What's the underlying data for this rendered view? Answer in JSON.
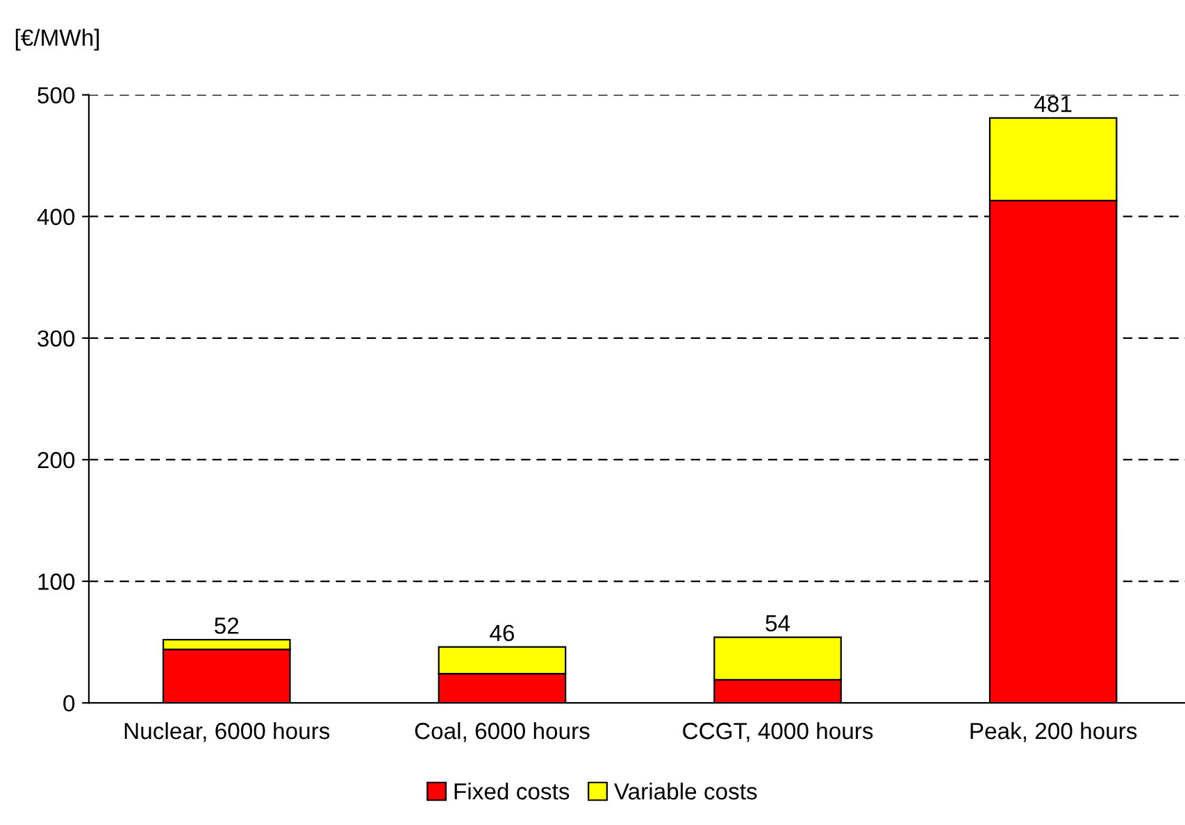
{
  "chart_data": {
    "type": "bar",
    "stacked": true,
    "ylabel": "[€/MWh]",
    "categories": [
      "Nuclear, 6000 hours",
      "Coal, 6000 hours",
      "CCGT, 4000 hours",
      "Peak, 200 hours"
    ],
    "series": [
      {
        "name": "Fixed costs",
        "color": "#ff0000",
        "values": [
          44,
          24,
          19,
          413
        ]
      },
      {
        "name": "Variable costs",
        "color": "#ffff00",
        "values": [
          8,
          22,
          35,
          68
        ]
      }
    ],
    "totals": [
      "52",
      "46",
      "54",
      "481"
    ],
    "ylim": [
      0,
      500
    ],
    "yticks": [
      0,
      100,
      200,
      300,
      400,
      500
    ],
    "grid": "y",
    "legend": "bottom"
  }
}
